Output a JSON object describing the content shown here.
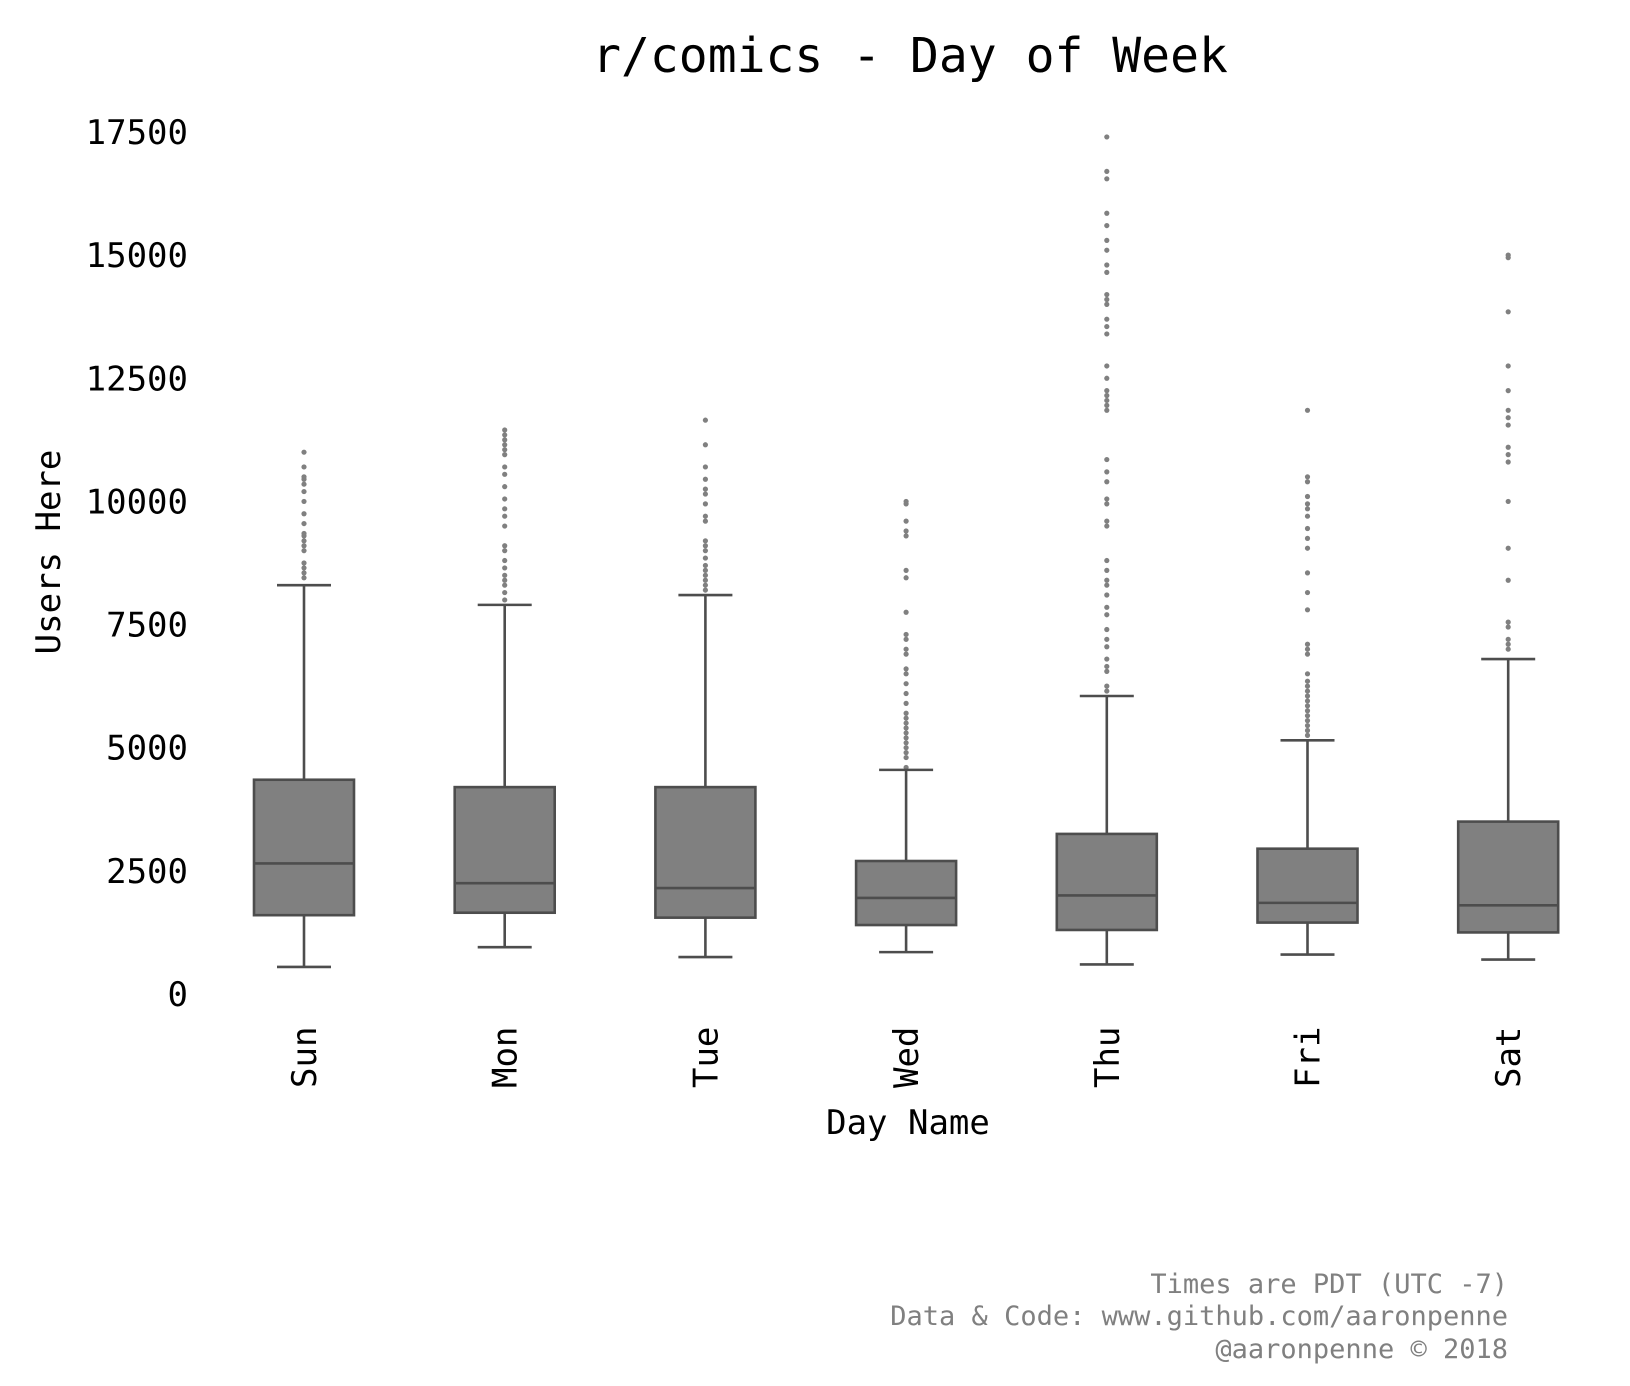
{
  "chart_data": {
    "type": "box",
    "title": "r/comics - Day of Week",
    "xlabel": "Day Name",
    "ylabel": "Users Here",
    "ylim": [
      0,
      17500
    ],
    "yticks": [
      0,
      2500,
      5000,
      7500,
      10000,
      12500,
      15000,
      17500
    ],
    "grid": false,
    "categories": [
      "Sun",
      "Mon",
      "Tue",
      "Wed",
      "Thu",
      "Fri",
      "Sat"
    ],
    "boxes": [
      {
        "category": "Sun",
        "whisker_low": 550,
        "q1": 1600,
        "median": 2650,
        "q3": 4350,
        "whisker_high": 8300,
        "outliers": [
          8450,
          8550,
          8650,
          8750,
          9000,
          9100,
          9200,
          9300,
          9350,
          9550,
          9750,
          10000,
          10200,
          10350,
          10450,
          10500,
          10700,
          11000
        ]
      },
      {
        "category": "Mon",
        "whisker_low": 950,
        "q1": 1650,
        "median": 2250,
        "q3": 4200,
        "whisker_high": 7900,
        "outliers": [
          8000,
          8150,
          8300,
          8400,
          8500,
          8650,
          8800,
          9000,
          9100,
          9500,
          9700,
          9850,
          10050,
          10300,
          10550,
          10700,
          10950,
          11050,
          11150,
          11250,
          11350,
          11450
        ]
      },
      {
        "category": "Tue",
        "whisker_low": 750,
        "q1": 1550,
        "median": 2150,
        "q3": 4200,
        "whisker_high": 8100,
        "outliers": [
          8200,
          8300,
          8400,
          8500,
          8600,
          8700,
          8850,
          9000,
          9100,
          9200,
          9600,
          9700,
          9950,
          10150,
          10250,
          10450,
          10700,
          11150,
          11650
        ]
      },
      {
        "category": "Wed",
        "whisker_low": 850,
        "q1": 1400,
        "median": 1950,
        "q3": 2700,
        "whisker_high": 4550,
        "outliers": [
          4600,
          4800,
          4900,
          5000,
          5100,
          5200,
          5300,
          5400,
          5500,
          5600,
          5700,
          5900,
          6100,
          6300,
          6500,
          6600,
          6900,
          7000,
          7200,
          7300,
          7750,
          8450,
          8600,
          9300,
          9400,
          9600,
          9950,
          10000
        ]
      },
      {
        "category": "Thu",
        "whisker_low": 600,
        "q1": 1300,
        "median": 2000,
        "q3": 3250,
        "whisker_high": 6050,
        "outliers": [
          6150,
          6250,
          6550,
          6650,
          6800,
          7050,
          7200,
          7400,
          7700,
          7850,
          8100,
          8300,
          8400,
          8600,
          8800,
          9500,
          9600,
          9950,
          10050,
          10400,
          10600,
          10850,
          11850,
          11950,
          12050,
          12150,
          12250,
          12500,
          12750,
          13400,
          13550,
          13700,
          14000,
          14100,
          14200,
          14650,
          14800,
          15100,
          15300,
          15600,
          15850,
          16550,
          16700,
          17400
        ]
      },
      {
        "category": "Fri",
        "whisker_low": 800,
        "q1": 1450,
        "median": 1850,
        "q3": 2950,
        "whisker_high": 5150,
        "outliers": [
          5250,
          5350,
          5450,
          5550,
          5650,
          5750,
          5850,
          5950,
          6050,
          6150,
          6250,
          6350,
          6500,
          6900,
          7000,
          7100,
          7800,
          8150,
          8550,
          9050,
          9250,
          9450,
          9700,
          9850,
          9950,
          10100,
          10400,
          10500,
          11850
        ]
      },
      {
        "category": "Sat",
        "whisker_low": 700,
        "q1": 1250,
        "median": 1800,
        "q3": 3500,
        "whisker_high": 6800,
        "outliers": [
          7000,
          7100,
          7200,
          7450,
          7550,
          8400,
          9050,
          10000,
          10800,
          10950,
          11100,
          11550,
          11700,
          11850,
          12250,
          12750,
          13850,
          14950,
          15000
        ]
      }
    ],
    "colors": {
      "box_fill": "#808080",
      "box_edge": "#4d4d4d",
      "outlier": "#808080"
    }
  },
  "footer": {
    "line1": "Times are PDT (UTC -7)",
    "line2": "Data & Code: www.github.com/aaronpenne",
    "line3": "@aaronpenne © 2018"
  }
}
